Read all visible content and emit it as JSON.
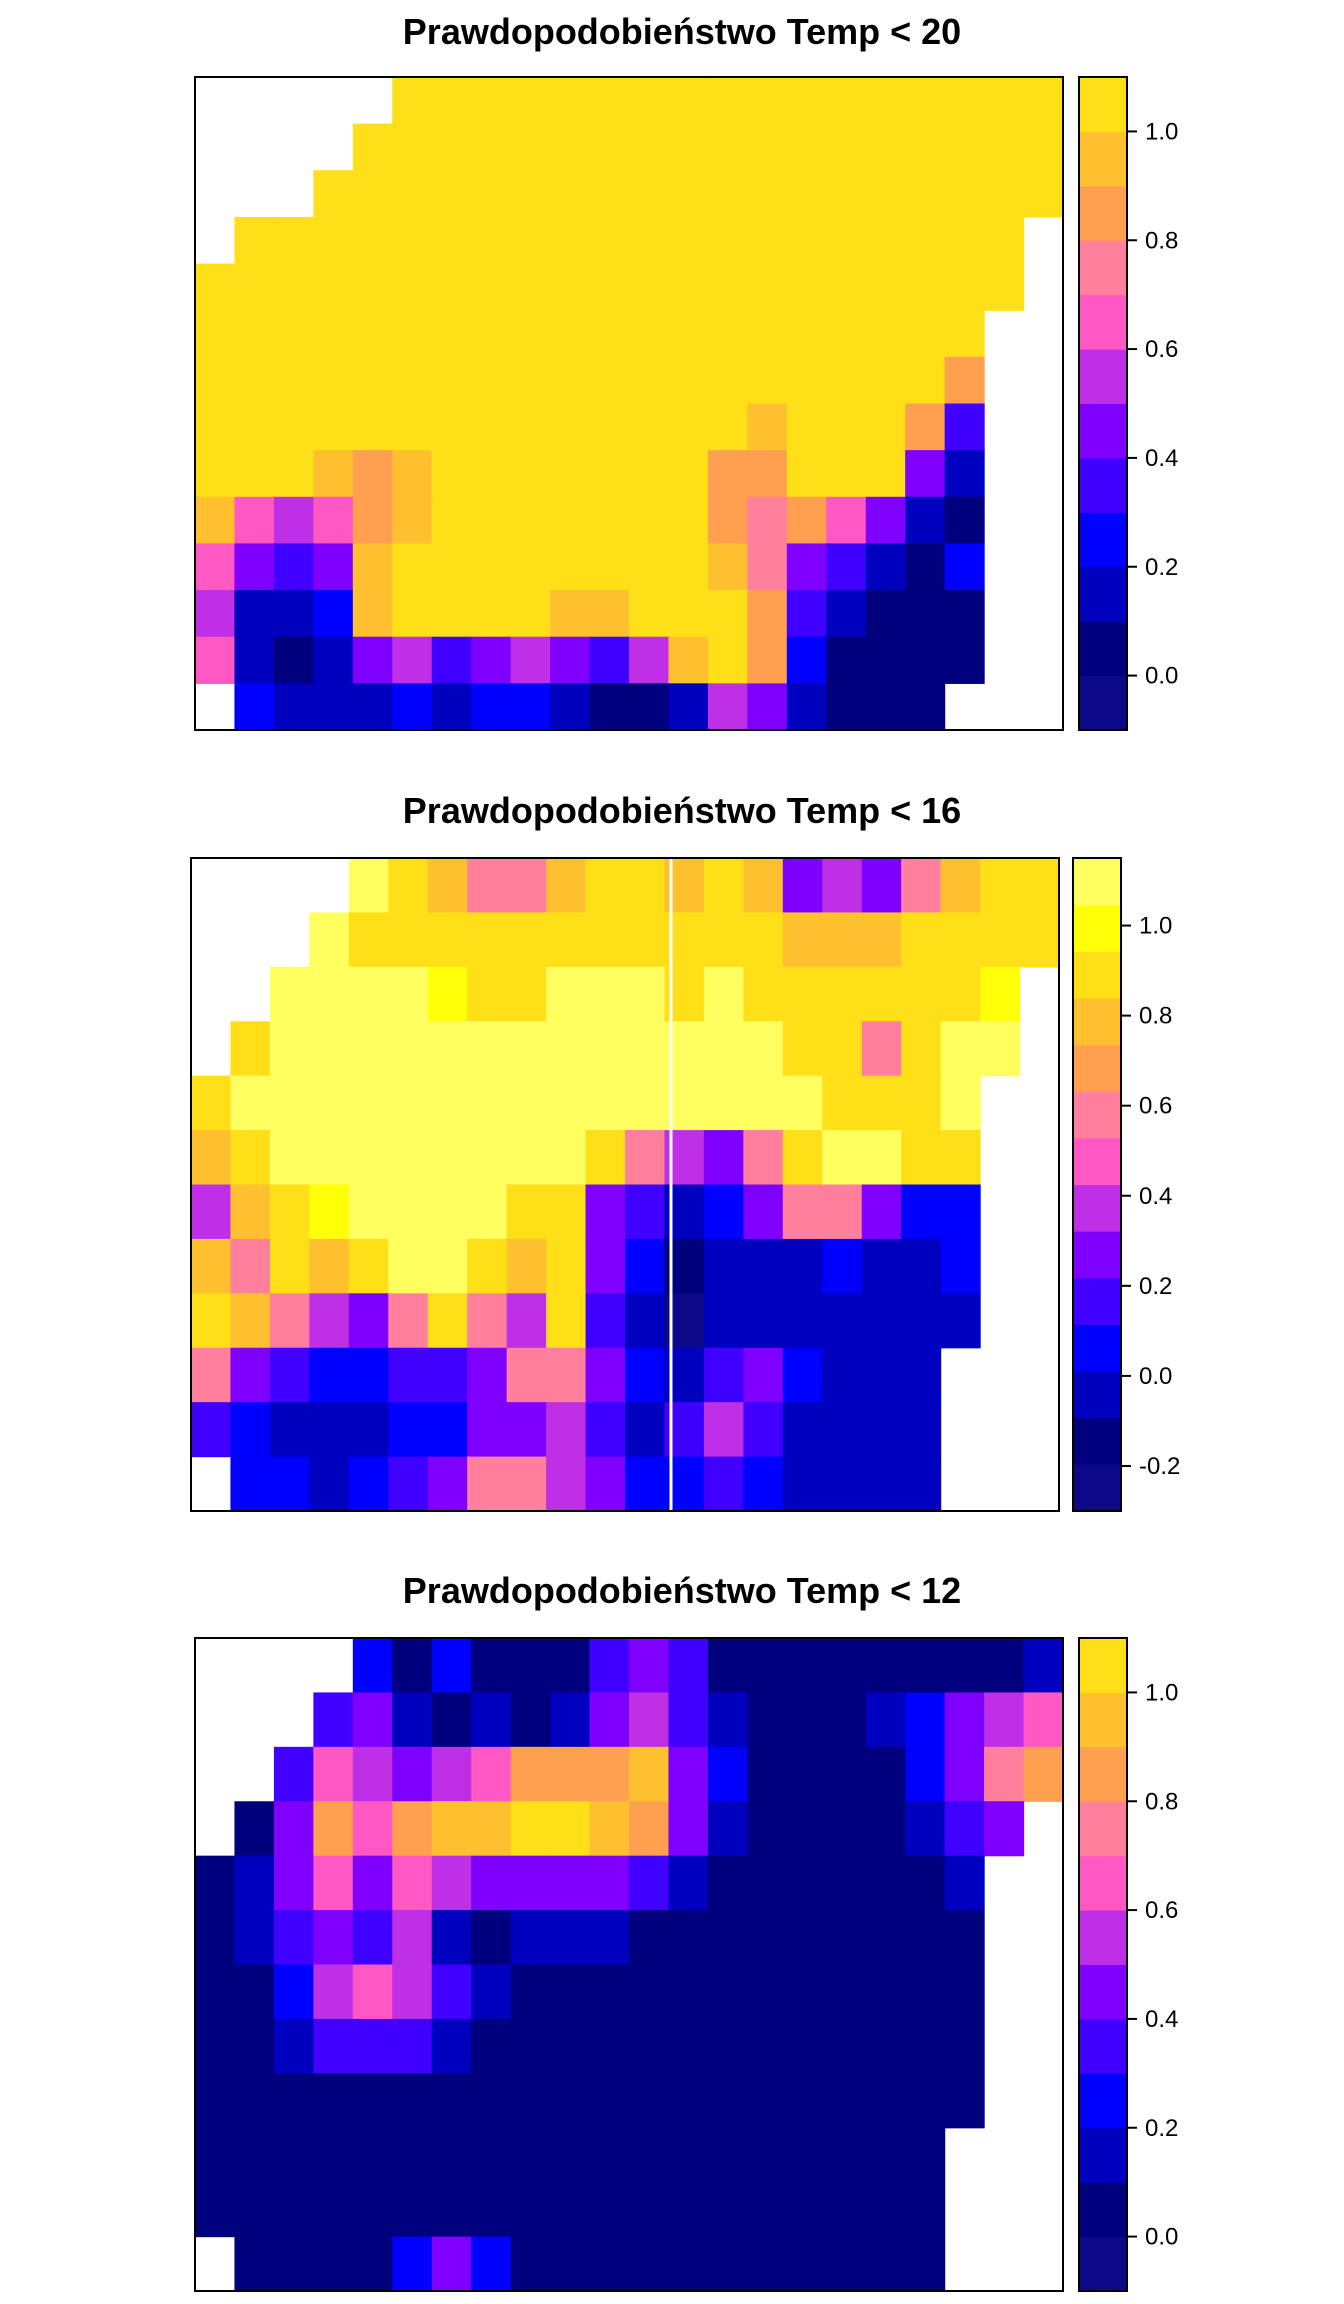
{
  "palette": [
    "#0D0887",
    "#00007F",
    "#0000BF",
    "#0000FF",
    "#3F00FF",
    "#7F00FF",
    "#BF2FE6",
    "#FF57C4",
    "#FF7F9C",
    "#FFA050",
    "#FFC02F",
    "#FFDF17",
    "#FFFF0A",
    "#FFFF60"
  ],
  "chart_data": [
    {
      "type": "heatmap",
      "title": "Prawdopodobieństwo Temp < 20",
      "xlabel": "",
      "ylabel": "",
      "legend": {
        "position": "right",
        "range": [
          -0.1,
          1.1
        ],
        "ticks": [
          0.0,
          0.2,
          0.4,
          0.6,
          0.8,
          1.0
        ],
        "tick_labels": [
          "0.0",
          "0.2",
          "0.4",
          "0.6",
          "0.8",
          "1.0"
        ],
        "step": 0.1
      },
      "grid": [
        [
          null,
          null,
          null,
          null,
          null,
          1,
          1,
          1,
          1,
          1,
          1,
          1,
          1,
          1,
          1,
          1,
          1,
          1,
          1,
          1,
          1,
          1
        ],
        [
          null,
          null,
          null,
          null,
          1,
          1,
          1,
          1,
          1,
          1,
          1,
          1,
          1,
          1,
          1,
          1,
          1,
          1,
          1,
          1,
          1,
          1
        ],
        [
          null,
          null,
          null,
          1,
          1,
          1,
          1,
          1,
          1,
          1,
          1,
          1,
          1,
          1,
          1,
          1,
          1,
          1,
          1,
          1,
          1,
          1
        ],
        [
          null,
          1,
          1,
          1,
          1,
          1,
          1,
          1,
          1,
          1,
          1,
          1,
          1,
          1,
          1,
          1,
          1,
          1,
          1,
          1,
          1,
          null
        ],
        [
          1,
          1,
          1,
          1,
          1,
          1,
          1,
          1,
          1,
          1,
          1,
          1,
          1,
          1,
          1,
          1,
          1,
          1,
          1,
          1,
          1,
          null
        ],
        [
          1,
          1,
          1,
          1,
          1,
          1,
          1,
          1,
          1,
          1,
          1,
          1,
          1,
          1,
          1,
          1,
          1,
          1,
          1,
          1,
          null,
          null
        ],
        [
          1,
          1,
          1,
          1,
          1,
          1,
          1,
          1,
          1,
          1,
          1,
          1,
          1,
          1,
          1,
          1,
          1,
          1,
          1,
          0.8,
          null,
          null
        ],
        [
          1,
          1,
          1,
          1,
          1,
          1,
          1,
          1,
          1,
          1,
          1,
          1,
          1,
          1,
          0.9,
          1,
          1,
          1,
          0.85,
          0.3,
          null,
          null
        ],
        [
          1,
          1,
          1,
          0.9,
          0.8,
          0.9,
          1,
          1,
          1,
          1,
          1,
          1,
          1,
          0.85,
          0.8,
          1,
          1,
          1,
          0.5,
          0.1,
          null,
          null
        ],
        [
          0.9,
          0.7,
          0.6,
          0.7,
          0.8,
          0.9,
          1,
          1,
          1,
          1,
          1,
          1,
          1,
          0.8,
          0.75,
          0.8,
          0.7,
          0.4,
          0.15,
          0.05,
          null,
          null
        ],
        [
          0.7,
          0.4,
          0.3,
          0.5,
          0.9,
          1,
          1,
          1,
          1,
          1,
          1,
          1,
          1,
          0.9,
          0.75,
          0.5,
          0.3,
          0.1,
          0.05,
          0.2,
          null,
          null
        ],
        [
          0.6,
          0.15,
          0.1,
          0.2,
          0.9,
          1,
          1,
          1,
          1,
          0.95,
          0.9,
          1,
          1,
          1,
          0.8,
          0.3,
          0.1,
          0.0,
          0.0,
          0.05,
          null,
          null
        ],
        [
          0.7,
          0.1,
          0.05,
          0.15,
          0.4,
          0.6,
          0.3,
          0.5,
          0.6,
          0.5,
          0.3,
          0.55,
          0.95,
          1,
          0.8,
          0.2,
          0.0,
          0.0,
          0.0,
          0.0,
          null,
          null
        ],
        [
          null,
          0.2,
          0.1,
          0.1,
          0.15,
          0.2,
          0.1,
          0.2,
          0.2,
          0.1,
          0.05,
          0.05,
          0.15,
          0.6,
          0.5,
          0.1,
          0.0,
          0.0,
          0.0,
          null,
          null,
          null
        ]
      ]
    },
    {
      "type": "heatmap",
      "title": "Prawdopodobieństwo Temp < 16",
      "xlabel": "",
      "ylabel": "",
      "legend": {
        "position": "right",
        "range": [
          -0.3,
          1.15
        ],
        "ticks": [
          -0.2,
          0.0,
          0.2,
          0.4,
          0.6,
          0.8,
          1.0
        ],
        "tick_labels": [
          "-0.2",
          "0.0",
          "0.2",
          "0.4",
          "0.6",
          "0.8",
          "1.0"
        ],
        "step": 0.1
      },
      "grid": [
        [
          null,
          null,
          null,
          null,
          1,
          0.85,
          0.7,
          0.5,
          0.5,
          0.7,
          0.8,
          0.9,
          0.7,
          0.9,
          0.7,
          0.3,
          0.4,
          0.2,
          0.5,
          0.7,
          0.9,
          0.85
        ],
        [
          null,
          null,
          null,
          1,
          0.9,
          0.85,
          0.8,
          0.8,
          0.85,
          0.9,
          0.9,
          0.9,
          0.85,
          0.9,
          0.8,
          0.7,
          0.75,
          0.7,
          0.8,
          0.85,
          0.9,
          0.9
        ],
        [
          null,
          null,
          1,
          1,
          1,
          1,
          0.95,
          0.9,
          0.9,
          1,
          1,
          1,
          0.9,
          1,
          0.9,
          0.85,
          0.9,
          0.8,
          0.9,
          0.9,
          0.95,
          null
        ],
        [
          null,
          0.9,
          1,
          1,
          1,
          1,
          1,
          1,
          1,
          1,
          1,
          1,
          1,
          1,
          1,
          0.9,
          0.8,
          0.6,
          0.8,
          1,
          1,
          null
        ],
        [
          0.8,
          1,
          1,
          1,
          1,
          1,
          1,
          1,
          1,
          1,
          1,
          1,
          1,
          1,
          1,
          1,
          0.9,
          0.85,
          0.9,
          1,
          null,
          null
        ],
        [
          0.7,
          0.9,
          1,
          1,
          1,
          1,
          1,
          1,
          1,
          1,
          0.8,
          0.5,
          0.4,
          0.3,
          0.6,
          0.9,
          1,
          1,
          0.9,
          0.85,
          null,
          null
        ],
        [
          0.4,
          0.7,
          0.85,
          0.95,
          1,
          1,
          1,
          1,
          0.9,
          0.8,
          0.3,
          0.1,
          0.0,
          0.05,
          0.2,
          0.5,
          0.6,
          0.3,
          0.05,
          0.05,
          null,
          null
        ],
        [
          0.7,
          0.5,
          0.9,
          0.7,
          0.9,
          1,
          1,
          0.9,
          0.7,
          0.8,
          0.2,
          0.05,
          -0.1,
          0.0,
          0.0,
          0.0,
          0.05,
          0.0,
          0.0,
          0.05,
          null,
          null
        ],
        [
          0.9,
          0.7,
          0.6,
          0.4,
          0.3,
          0.6,
          0.8,
          0.6,
          0.4,
          0.8,
          0.1,
          0.0,
          -0.2,
          0.0,
          0.0,
          0.0,
          0.0,
          -0.05,
          0.0,
          0.0,
          null,
          null
        ],
        [
          0.6,
          0.3,
          0.1,
          0.05,
          0.05,
          0.1,
          0.15,
          0.3,
          0.5,
          0.6,
          0.2,
          0.05,
          0.0,
          0.1,
          0.3,
          0.05,
          0.0,
          0.0,
          0.0,
          null,
          null,
          null
        ],
        [
          0.1,
          0.05,
          0.0,
          -0.05,
          0.0,
          0.05,
          0.05,
          0.2,
          0.3,
          0.4,
          0.15,
          0.0,
          0.1,
          0.4,
          0.1,
          0.0,
          0.0,
          0.0,
          0.0,
          null,
          null,
          null
        ],
        [
          null,
          0.05,
          0.05,
          0.0,
          0.05,
          0.1,
          0.3,
          0.6,
          0.5,
          0.4,
          0.2,
          0.05,
          0.05,
          0.1,
          0.05,
          0.0,
          0.0,
          0.0,
          0.0,
          null,
          null,
          null
        ]
      ]
    },
    {
      "type": "heatmap",
      "title": "Prawdopodobieństwo Temp < 12",
      "xlabel": "",
      "ylabel": "",
      "legend": {
        "position": "right",
        "range": [
          -0.1,
          1.1
        ],
        "ticks": [
          0.0,
          0.2,
          0.4,
          0.6,
          0.8,
          1.0
        ],
        "tick_labels": [
          "0.0",
          "0.2",
          "0.4",
          "0.6",
          "0.8",
          "1.0"
        ],
        "step": 0.1
      },
      "grid": [
        [
          null,
          null,
          null,
          null,
          0.2,
          0.05,
          0.2,
          0.0,
          0.05,
          0.0,
          0.3,
          0.5,
          0.3,
          0.0,
          0.0,
          0.0,
          0.0,
          0.0,
          0.0,
          0.0,
          0.0,
          0.1
        ],
        [
          null,
          null,
          null,
          0.3,
          0.4,
          0.15,
          0.05,
          0.1,
          0.0,
          0.1,
          0.4,
          0.6,
          0.3,
          0.1,
          0.0,
          0.0,
          0.0,
          0.1,
          0.2,
          0.4,
          0.6,
          0.7
        ],
        [
          null,
          null,
          0.3,
          0.7,
          0.6,
          0.5,
          0.6,
          0.7,
          0.8,
          0.8,
          0.85,
          0.9,
          0.5,
          0.2,
          0.0,
          0.0,
          0.0,
          0.05,
          0.2,
          0.5,
          0.75,
          0.85
        ],
        [
          null,
          0.05,
          0.4,
          0.8,
          0.7,
          0.8,
          0.9,
          0.95,
          1.0,
          1.0,
          0.95,
          0.8,
          0.4,
          0.15,
          0.0,
          0.0,
          0.0,
          0.0,
          0.1,
          0.3,
          0.5,
          null
        ],
        [
          0.0,
          0.1,
          0.5,
          0.7,
          0.5,
          0.7,
          0.6,
          0.4,
          0.4,
          0.5,
          0.4,
          0.3,
          0.15,
          0.05,
          0.0,
          0.0,
          0.0,
          0.0,
          0.0,
          0.1,
          null,
          null
        ],
        [
          0.0,
          0.1,
          0.3,
          0.5,
          0.3,
          0.6,
          0.15,
          0.05,
          0.1,
          0.15,
          0.1,
          0.05,
          0.0,
          0.0,
          0.0,
          0.0,
          0.0,
          0.0,
          0.0,
          0.05,
          null,
          null
        ],
        [
          0.0,
          0.05,
          0.2,
          0.6,
          0.7,
          0.6,
          0.3,
          0.1,
          0.05,
          0.05,
          0.0,
          0.0,
          0.0,
          0.0,
          0.0,
          0.0,
          0.0,
          0.0,
          0.0,
          0.0,
          null,
          null
        ],
        [
          0.0,
          0.0,
          0.1,
          0.3,
          0.3,
          0.3,
          0.15,
          0.05,
          0.0,
          0.0,
          0.0,
          0.0,
          0.0,
          0.0,
          0.0,
          0.0,
          0.0,
          0.0,
          0.0,
          0.0,
          null,
          null
        ],
        [
          0.0,
          0.0,
          0.05,
          0.05,
          0.05,
          0.05,
          0.0,
          0.0,
          0.0,
          0.0,
          0.0,
          0.0,
          0.0,
          0.0,
          0.0,
          0.0,
          0.0,
          0.0,
          0.0,
          0.0,
          null,
          null
        ],
        [
          0.0,
          0.0,
          0.0,
          0.0,
          0.0,
          0.0,
          0.0,
          0.0,
          0.0,
          0.0,
          0.0,
          0.0,
          0.0,
          0.0,
          0.0,
          0.0,
          0.0,
          0.0,
          0.0,
          null,
          null,
          null
        ],
        [
          0.0,
          0.0,
          0.0,
          0.0,
          0.0,
          0.0,
          0.0,
          0.0,
          0.0,
          0.0,
          0.0,
          0.0,
          0.0,
          0.0,
          0.0,
          0.0,
          0.0,
          0.0,
          0.0,
          null,
          null,
          null
        ],
        [
          null,
          0.0,
          0.0,
          0.0,
          0.05,
          0.2,
          0.5,
          0.2,
          0.05,
          0.0,
          0.0,
          0.0,
          0.0,
          0.0,
          0.0,
          0.0,
          0.0,
          0.0,
          0.0,
          null,
          null,
          null
        ]
      ]
    }
  ]
}
